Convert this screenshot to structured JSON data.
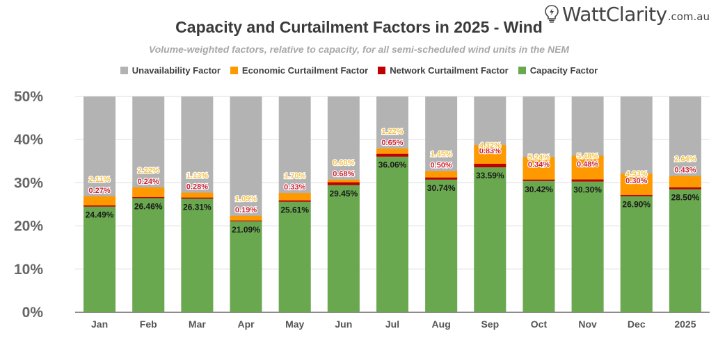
{
  "title": "Capacity and Curtailment Factors in 2025 - Wind",
  "subtitle": "Volume-weighted factors, relative to capacity, for all semi-scheduled wind units in the NEM",
  "logo": {
    "icon": "lightbulb-bolt-icon",
    "brand": "WattClarity",
    "registered": "®",
    "tld": ".com.au"
  },
  "colors": {
    "unavailability": "#b3b3b3",
    "economic": "#ff9900",
    "network": "#c00000",
    "capacity": "#6aa84f",
    "economic_label": "#f6c343",
    "network_label": "#cc1f2f",
    "capacity_label": "#1a1a1a"
  },
  "chart_data": {
    "type": "bar",
    "stacked": true,
    "title": "Capacity and Curtailment Factors in 2025 - Wind",
    "subtitle": "Volume-weighted factors, relative to capacity, for all semi-scheduled wind units in the NEM",
    "xlabel": "",
    "ylabel": "",
    "ylim": [
      0,
      50
    ],
    "yticks": [
      "0%",
      "10%",
      "20%",
      "30%",
      "40%",
      "50%"
    ],
    "ytick_values": [
      0,
      10,
      20,
      30,
      40,
      50
    ],
    "grid": true,
    "legend_position": "top-center",
    "categories": [
      "Jan",
      "Feb",
      "Mar",
      "Apr",
      "May",
      "Jun",
      "Jul",
      "Aug",
      "Sep",
      "Oct",
      "Nov",
      "Dec",
      "2025"
    ],
    "series": [
      {
        "name": "Capacity Factor",
        "key": "capacity",
        "values": [
          24.49,
          26.46,
          26.31,
          21.09,
          25.61,
          29.45,
          36.06,
          30.74,
          33.59,
          30.42,
          30.3,
          26.9,
          28.5
        ]
      },
      {
        "name": "Network Curtailment Factor",
        "key": "network",
        "values": [
          0.27,
          0.24,
          0.28,
          0.19,
          0.33,
          0.68,
          0.65,
          0.5,
          0.83,
          0.34,
          0.48,
          0.3,
          0.43
        ]
      },
      {
        "name": "Economic Curtailment Factor",
        "key": "economic",
        "values": [
          2.11,
          2.22,
          1.13,
          1.09,
          1.7,
          0.6,
          1.22,
          1.45,
          4.32,
          5.24,
          5.48,
          4.93,
          2.64
        ]
      },
      {
        "name": "Unavailability Factor",
        "key": "unavailability",
        "values": [
          23.13,
          21.08,
          22.28,
          27.63,
          22.36,
          19.27,
          12.07,
          17.31,
          11.26,
          14.0,
          13.74,
          17.87,
          18.43
        ],
        "note": "remainder to 50% (unlabeled)"
      }
    ],
    "data_labels": {
      "capacity": [
        "24.49%",
        "26.46%",
        "26.31%",
        "21.09%",
        "25.61%",
        "29.45%",
        "36.06%",
        "30.74%",
        "33.59%",
        "30.42%",
        "30.30%",
        "26.90%",
        "28.50%"
      ],
      "network": [
        "0.27%",
        "0.24%",
        "0.28%",
        "0.19%",
        "0.33%",
        "0.68%",
        "0.65%",
        "0.50%",
        "0.83%",
        "0.34%",
        "0.48%",
        "0.30%",
        "0.43%"
      ],
      "economic": [
        "2.11%",
        "2.22%",
        "1.13%",
        "1.09%",
        "1.70%",
        "0.60%",
        "1.22%",
        "1.45%",
        "4.32%",
        "5.24%",
        "5.48%",
        "4.93%",
        "2.64%"
      ]
    }
  },
  "legend": [
    {
      "label": "Unavailability Factor",
      "key": "unavailability"
    },
    {
      "label": "Economic Curtailment Factor",
      "key": "economic"
    },
    {
      "label": "Network Curtailment Factor",
      "key": "network"
    },
    {
      "label": "Capacity Factor",
      "key": "capacity"
    }
  ]
}
